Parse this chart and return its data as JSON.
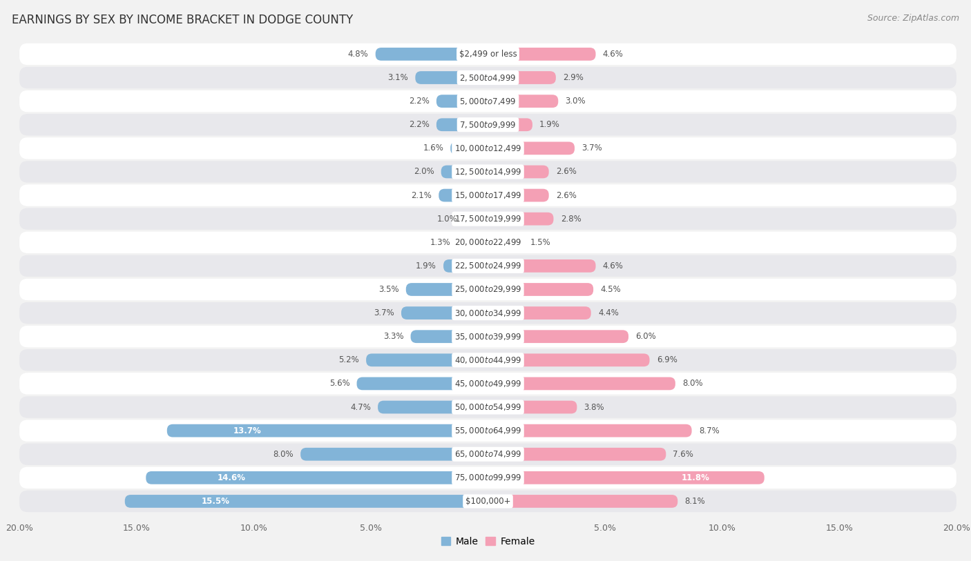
{
  "title": "EARNINGS BY SEX BY INCOME BRACKET IN DODGE COUNTY",
  "source": "Source: ZipAtlas.com",
  "categories": [
    "$2,499 or less",
    "$2,500 to $4,999",
    "$5,000 to $7,499",
    "$7,500 to $9,999",
    "$10,000 to $12,499",
    "$12,500 to $14,999",
    "$15,000 to $17,499",
    "$17,500 to $19,999",
    "$20,000 to $22,499",
    "$22,500 to $24,999",
    "$25,000 to $29,999",
    "$30,000 to $34,999",
    "$35,000 to $39,999",
    "$40,000 to $44,999",
    "$45,000 to $49,999",
    "$50,000 to $54,999",
    "$55,000 to $64,999",
    "$65,000 to $74,999",
    "$75,000 to $99,999",
    "$100,000+"
  ],
  "male_values": [
    4.8,
    3.1,
    2.2,
    2.2,
    1.6,
    2.0,
    2.1,
    1.0,
    1.3,
    1.9,
    3.5,
    3.7,
    3.3,
    5.2,
    5.6,
    4.7,
    13.7,
    8.0,
    14.6,
    15.5
  ],
  "female_values": [
    4.6,
    2.9,
    3.0,
    1.9,
    3.7,
    2.6,
    2.6,
    2.8,
    1.5,
    4.6,
    4.5,
    4.4,
    6.0,
    6.9,
    8.0,
    3.8,
    8.7,
    7.6,
    11.8,
    8.1
  ],
  "male_color": "#82b4d8",
  "female_color": "#f4a0b5",
  "background_color": "#f2f2f2",
  "row_color_light": "#ffffff",
  "row_color_dark": "#e8e8ec",
  "xlim": 20.0,
  "label_male": "Male",
  "label_female": "Female",
  "title_fontsize": 12,
  "source_fontsize": 9,
  "tick_fontsize": 9,
  "category_fontsize": 8.5,
  "value_fontsize": 8.5
}
